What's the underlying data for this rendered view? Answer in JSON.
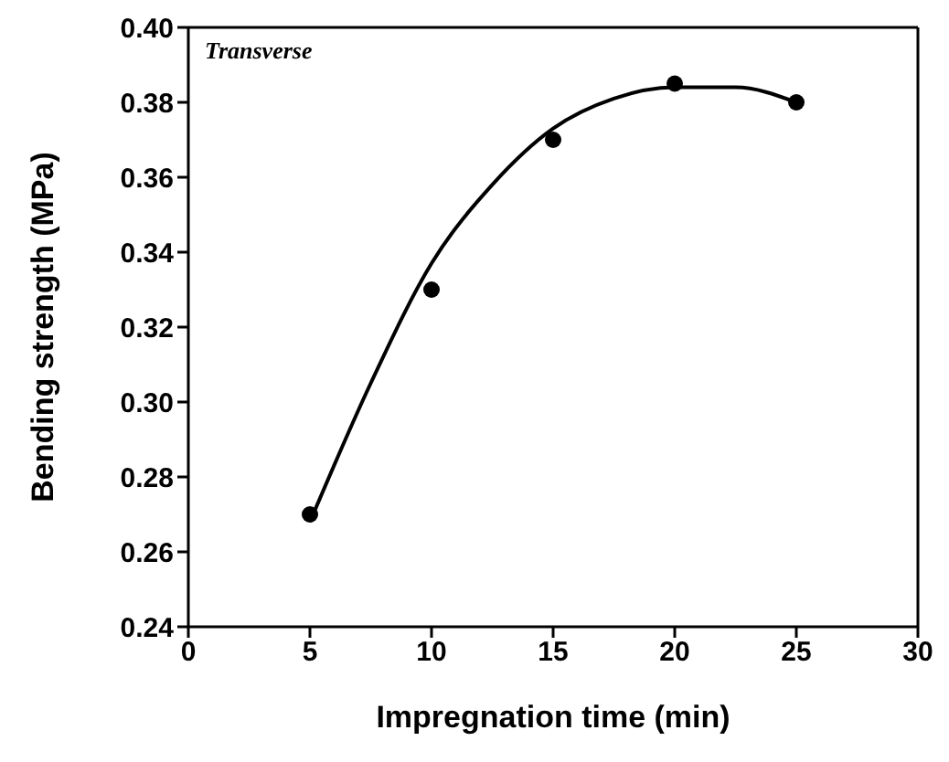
{
  "chart_data": {
    "type": "scatter",
    "xlabel": "Impregnation time  (min)",
    "ylabel": "Bending strength  (MPa)",
    "annotations": [
      "Transverse"
    ],
    "xlim": [
      0,
      30
    ],
    "xticks": [
      0,
      5,
      10,
      15,
      20,
      25,
      30
    ],
    "ylim": [
      0.24,
      0.4
    ],
    "yticks": [
      0.24,
      0.26,
      0.28,
      {
        "value": 0.3,
        "label": "0.30"
      },
      0.32,
      0.34,
      0.36,
      0.38,
      {
        "value": 0.4,
        "label": "0.40"
      }
    ],
    "grid": false,
    "legend": false,
    "marker": "circle",
    "series": [
      {
        "color": "#000000",
        "x": [
          5,
          10,
          15,
          20,
          25
        ],
        "values": [
          0.27,
          0.33,
          0.37,
          0.385,
          0.38
        ]
      },
      {
        "type": "line",
        "color": "#000000",
        "marker": "none",
        "line_style": "solid",
        "x": [
          5,
          7.5,
          10,
          12.5,
          15,
          17.5,
          20,
          22.5,
          25
        ],
        "values": [
          0.268,
          0.305,
          0.337,
          0.358,
          0.373,
          0.381,
          0.384,
          0.384,
          0.38
        ]
      }
    ]
  }
}
